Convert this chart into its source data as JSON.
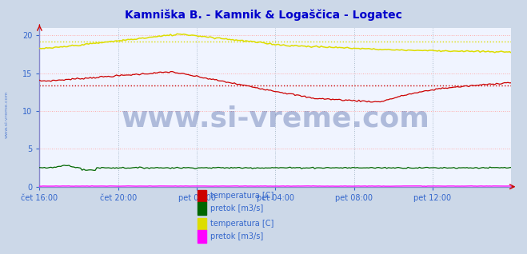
{
  "title": "Kamniška B. - Kamnik & Logaščica - Logatec",
  "title_color": "#0000cc",
  "title_fontsize": 10,
  "bg_color": "#ccd8e8",
  "plot_bg_color": "#f0f4ff",
  "grid_color": "#aabbcc",
  "grid_color_h": "#ffaaaa",
  "xlim": [
    0,
    288
  ],
  "ylim": [
    0,
    21
  ],
  "yticks": [
    0,
    5,
    10,
    15,
    20
  ],
  "xtick_labels": [
    "čet 16:00",
    "čet 20:00",
    "pet 00:00",
    "pet 04:00",
    "pet 08:00",
    "pet 12:00"
  ],
  "xtick_positions": [
    0,
    48,
    96,
    144,
    192,
    240
  ],
  "watermark": "www.si-vreme.com",
  "watermark_color": "#1a3a8a",
  "watermark_alpha": 0.3,
  "watermark_fontsize": 26,
  "spine_color": "#8888cc",
  "tick_color": "#3366cc",
  "side_label": "www.si-vreme.com",
  "kamnik_temp_color": "#cc0000",
  "kamnik_pretok_color": "#006600",
  "logatec_temp_color": "#dddd00",
  "logatec_pretok_color": "#ff00ff",
  "mean_dotted_kamnik": "#cc0000",
  "mean_dotted_logatec": "#dddd00",
  "legend_items": [
    {
      "label": "temperatura [C]",
      "color": "#cc0000"
    },
    {
      "label": "pretok [m3/s]",
      "color": "#006600"
    },
    {
      "label": "temperatura [C]",
      "color": "#dddd00"
    },
    {
      "label": "pretok [m3/s]",
      "color": "#ff00ff"
    }
  ],
  "axis_arrow_color": "#cc0000",
  "kamnik_temp_mean": 13.4,
  "logatec_temp_mean": 19.2
}
